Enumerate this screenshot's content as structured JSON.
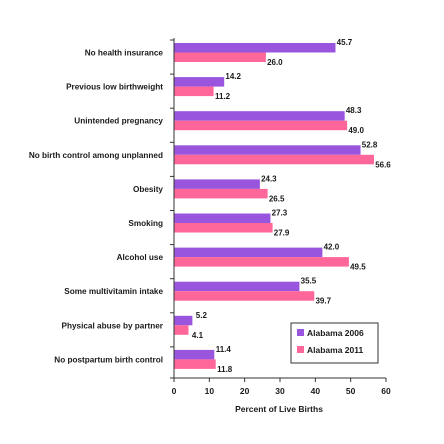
{
  "chart_data": {
    "type": "bar",
    "orientation": "horizontal",
    "categories": [
      "No health insurance",
      "Previous low birthweight",
      "Unintended pregnancy",
      "No birth control among unplanned",
      "Obesity",
      "Smoking",
      "Alcohol use",
      "Some multivitamin intake",
      "Physical abuse by partner",
      "No postpartum birth control"
    ],
    "series": [
      {
        "name": "Alabama 2006",
        "color": "#9955dd",
        "values": [
          45.7,
          14.2,
          48.3,
          52.8,
          24.3,
          27.3,
          42.0,
          35.5,
          5.2,
          11.4
        ],
        "labels": [
          "45.7",
          "14.2",
          "48.3",
          "52.8",
          "24.3",
          "27.3",
          "42.0",
          "35.5",
          "5.2",
          "11.4"
        ]
      },
      {
        "name": "Alabama 2011",
        "color": "#ff6699",
        "values": [
          26.0,
          11.2,
          49.0,
          56.6,
          26.5,
          27.9,
          49.5,
          39.7,
          4.1,
          11.8
        ],
        "labels": [
          "26.0",
          "11.2",
          "49.0",
          "56.6",
          "26.5",
          "27.9",
          "49.5",
          "39.7",
          "4.1",
          "11.8"
        ]
      }
    ],
    "xlabel": "Percent of Live Births",
    "xlim": [
      0,
      60
    ],
    "xticks": [
      "0",
      "10",
      "20",
      "30",
      "40",
      "50",
      "60"
    ],
    "grid": false,
    "legend_position": "bottom-right"
  }
}
